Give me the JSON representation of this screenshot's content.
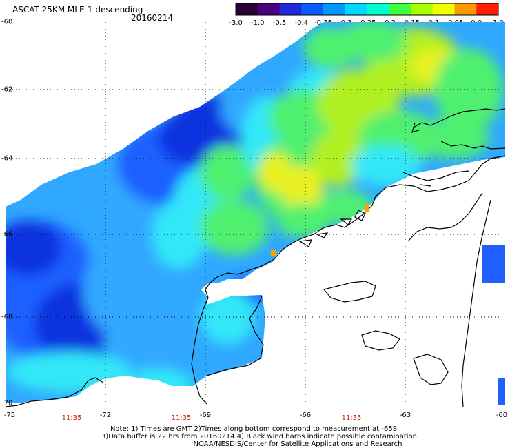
{
  "header": {
    "title": "ASCAT 25KM MLE-1 descending",
    "date": "20160214"
  },
  "colorbar": {
    "labels": [
      "-3.0",
      "-1.0",
      "-0.5",
      "-0.4",
      "-0.35",
      "-0.3",
      "-0.25",
      "-0.2",
      "-0.15",
      "-0.1",
      "-0.05",
      "0.0",
      "1.0"
    ],
    "colors": [
      "#2a0035",
      "#4b0080",
      "#1f2bd8",
      "#0a5cff",
      "#0098ff",
      "#00d8ff",
      "#00ffd0",
      "#40ff40",
      "#a8ff00",
      "#f0ff00",
      "#ff9800",
      "#ff2000"
    ]
  },
  "map": {
    "latitude_labels": [
      "-60",
      "-62",
      "-64",
      "-66",
      "-68",
      "-70"
    ],
    "longitude_labels": [
      "-75",
      "-72",
      "-69",
      "-66",
      "-63",
      "-60"
    ],
    "time_labels": [
      "11:35",
      "11:35",
      "11:35"
    ],
    "palette": {
      "deep_blue": "#1030e0",
      "blue": "#1a60ff",
      "light_blue": "#30a8ff",
      "cyan": "#30e8f8",
      "green": "#50f070",
      "yellow_green": "#b0f020",
      "yellow": "#e8f020",
      "orange": "#ffa000",
      "coastline": "#000000",
      "grid": "#000000"
    }
  },
  "notes": {
    "line1": "Note: 1) Times are GMT 2)Times along bottom correspond to measurement at -65S",
    "line2": "3)Data buffer is 22 hrs from 20160214 4) Black wind barbs indicate possible contamination",
    "line3": "NOAA/NESDIS/Center for Satellite Applications and Research"
  }
}
